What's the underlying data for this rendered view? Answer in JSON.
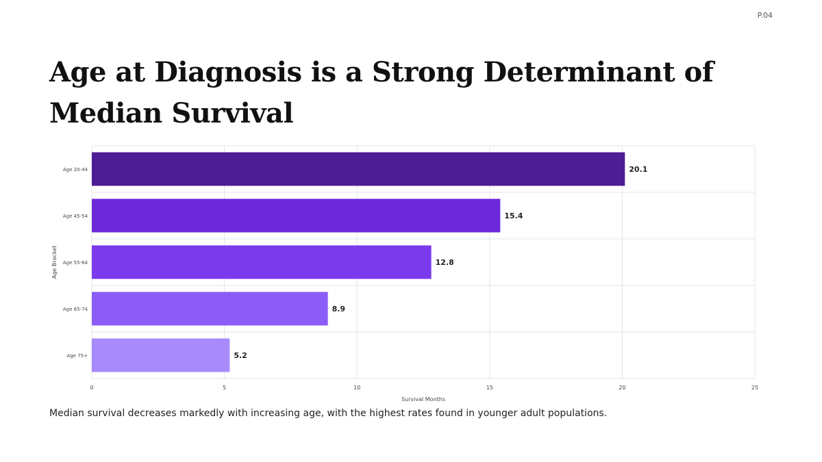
{
  "page": {
    "number": "P.04"
  },
  "title": "Age at Diagnosis is a Strong Determinant of Median Survival",
  "caption": "Median survival decreases markedly with increasing age, with the highest rates found in younger adult populations.",
  "colors": {
    "bars": [
      "#4c1d95",
      "#6d28d9",
      "#7c3aed",
      "#8b5cf6",
      "#a78bfa"
    ],
    "grid": "#e5e5e5",
    "axis": "#444444"
  },
  "chart_data": {
    "type": "bar",
    "orientation": "horizontal",
    "categories": [
      "Age 20-44",
      "Age 45-54",
      "Age 55-64",
      "Age 65-74",
      "Age 75+"
    ],
    "values": [
      20.1,
      15.4,
      12.8,
      8.9,
      5.2
    ],
    "data_labels": [
      "20.1",
      "15.4",
      "12.8",
      "8.9",
      "5.2"
    ],
    "xlabel": "Survival Months",
    "ylabel": "Age Bracket",
    "xlim": [
      0,
      25
    ],
    "xticks": [
      0,
      5,
      10,
      15,
      20,
      25
    ],
    "grid": true,
    "legend": "none"
  }
}
